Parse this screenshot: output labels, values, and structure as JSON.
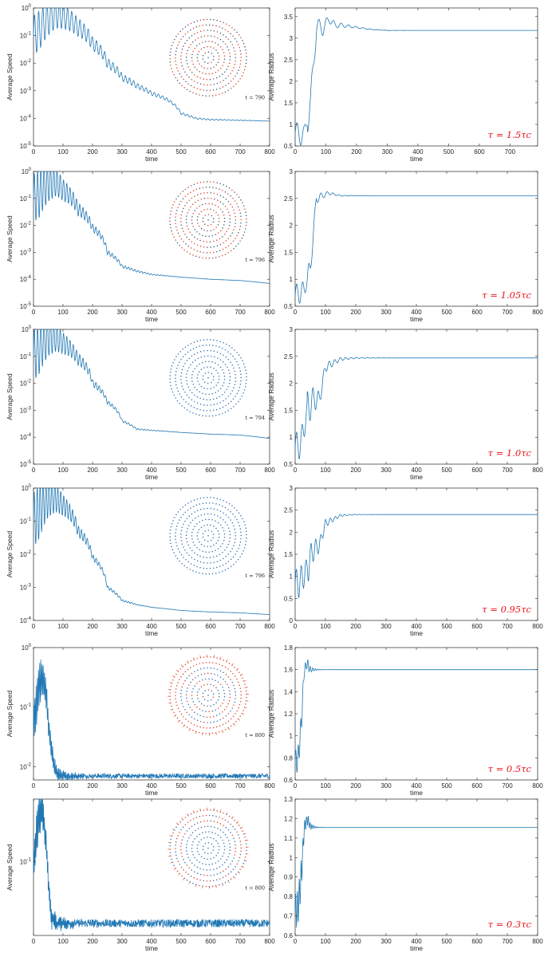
{
  "colors": {
    "line": "#1f77b4",
    "dot_blue": "#2e6fb5",
    "dot_red": "#e0442a",
    "tau_label": "#e8141b",
    "axis": "#262626"
  },
  "chart_data": [
    {
      "type": "line",
      "row": 1,
      "col": "speed",
      "xlabel": "time",
      "ylabel": "Average Speed",
      "yscale": "log",
      "xlim": [
        0,
        800
      ],
      "ylim": [
        1e-05,
        1
      ],
      "xticks": [
        "0",
        "100",
        "200",
        "300",
        "400",
        "500",
        "600",
        "700",
        "800"
      ],
      "yticks": [
        {
          "exp": "-5",
          "v": 1e-05
        },
        {
          "exp": "-4",
          "v": 0.0001
        },
        {
          "exp": "-3",
          "v": 0.001
        },
        {
          "exp": "-2",
          "v": 0.01
        },
        {
          "exp": "-1",
          "v": 0.1
        },
        {
          "exp": "0",
          "v": 1
        }
      ],
      "series": [
        {
          "x": [
            0,
            20,
            50,
            75,
            100,
            150,
            200,
            250,
            300,
            350,
            400,
            450,
            500,
            550,
            600,
            700,
            790
          ],
          "y": [
            0.1,
            0.15,
            0.4,
            0.6,
            0.5,
            0.2,
            0.05,
            0.01,
            0.003,
            0.0015,
            0.0008,
            0.0005,
            0.00015,
            0.0001,
            9e-05,
            8.5e-05,
            8e-05
          ],
          "osc_decay": 0.006,
          "osc_amp": 1.2,
          "osc_period": 14
        }
      ],
      "inset": {
        "label": "t = 790",
        "style": "sparse"
      }
    },
    {
      "type": "line",
      "row": 1,
      "col": "radius",
      "xlabel": "time",
      "ylabel": "Average Radius",
      "xlim": [
        0,
        790
      ],
      "ylim": [
        0.5,
        3.7
      ],
      "xticks": [
        "0",
        "100",
        "200",
        "300",
        "400",
        "500",
        "600",
        "700"
      ],
      "yticks": [
        {
          "label": "0.5",
          "v": 0.5
        },
        {
          "label": "1",
          "v": 1
        },
        {
          "label": "1.5",
          "v": 1.5
        },
        {
          "label": "2",
          "v": 2
        },
        {
          "label": "2.5",
          "v": 2.5
        },
        {
          "label": "3",
          "v": 3
        },
        {
          "label": "3.5",
          "v": 3.5
        }
      ],
      "series": [
        {
          "x": [
            0,
            30,
            50,
            70,
            90,
            110,
            130,
            150,
            200,
            250,
            300,
            400,
            500,
            600,
            700,
            790
          ],
          "y": [
            0.8,
            0.75,
            1.5,
            3.3,
            3.2,
            3.45,
            3.3,
            3.3,
            3.25,
            3.2,
            3.18,
            3.18,
            3.18,
            3.18,
            3.18,
            3.18
          ],
          "osc_decay": 0.018,
          "osc_amp": 1.3,
          "osc_period": 24
        }
      ],
      "annotation": "τ = 1.5τc"
    },
    {
      "type": "line",
      "row": 2,
      "col": "speed",
      "xlabel": "time",
      "ylabel": "Average Speed",
      "yscale": "log",
      "xlim": [
        0,
        800
      ],
      "ylim": [
        1e-05,
        1
      ],
      "xticks": [
        "0",
        "100",
        "200",
        "300",
        "400",
        "500",
        "600",
        "700",
        "800"
      ],
      "yticks": [
        {
          "exp": "-5",
          "v": 1e-05
        },
        {
          "exp": "-4",
          "v": 0.0001
        },
        {
          "exp": "-3",
          "v": 0.001
        },
        {
          "exp": "-2",
          "v": 0.01
        },
        {
          "exp": "-1",
          "v": 0.1
        },
        {
          "exp": "0",
          "v": 1
        }
      ],
      "series": [
        {
          "x": [
            0,
            20,
            50,
            75,
            100,
            150,
            200,
            250,
            300,
            350,
            400,
            500,
            600,
            700,
            800
          ],
          "y": [
            0.1,
            0.15,
            0.35,
            0.4,
            0.2,
            0.04,
            0.008,
            0.001,
            0.0003,
            0.0002,
            0.00015,
            0.00012,
            0.0001,
            9e-05,
            7e-05
          ],
          "osc_decay": 0.01,
          "osc_amp": 1.5,
          "osc_period": 11
        }
      ],
      "inset": {
        "label": "t = 796",
        "style": "sparse"
      }
    },
    {
      "type": "line",
      "row": 2,
      "col": "radius",
      "xlabel": "time",
      "ylabel": "Average Radius",
      "xlim": [
        0,
        800
      ],
      "ylim": [
        0.5,
        3
      ],
      "xticks": [
        "0",
        "100",
        "200",
        "300",
        "400",
        "500",
        "600",
        "700",
        "800"
      ],
      "yticks": [
        {
          "label": "0.5",
          "v": 0.5
        },
        {
          "label": "1",
          "v": 1
        },
        {
          "label": "1.5",
          "v": 1.5
        },
        {
          "label": "2",
          "v": 2
        },
        {
          "label": "2.5",
          "v": 2.5
        },
        {
          "label": "3",
          "v": 3
        }
      ],
      "series": [
        {
          "x": [
            0,
            30,
            50,
            70,
            90,
            110,
            150,
            200,
            250,
            300,
            400,
            500,
            600,
            700,
            800
          ],
          "y": [
            0.7,
            0.8,
            1.2,
            2.5,
            2.55,
            2.6,
            2.55,
            2.55,
            2.55,
            2.55,
            2.55,
            2.55,
            2.55,
            2.55,
            2.55
          ],
          "osc_decay": 0.028,
          "osc_amp": 1.3,
          "osc_period": 20
        }
      ],
      "annotation": "τ = 1.05τc"
    },
    {
      "type": "line",
      "row": 3,
      "col": "speed",
      "xlabel": "time",
      "ylabel": "Average Speed",
      "yscale": "log",
      "xlim": [
        0,
        800
      ],
      "ylim": [
        1e-05,
        1
      ],
      "xticks": [
        "0",
        "100",
        "200",
        "300",
        "400",
        "500",
        "600",
        "700",
        "800"
      ],
      "yticks": [
        {
          "exp": "-5",
          "v": 1e-05
        },
        {
          "exp": "-4",
          "v": 0.0001
        },
        {
          "exp": "-3",
          "v": 0.001
        },
        {
          "exp": "-2",
          "v": 0.01
        },
        {
          "exp": "-1",
          "v": 0.1
        },
        {
          "exp": "0",
          "v": 1
        }
      ],
      "series": [
        {
          "x": [
            0,
            20,
            50,
            75,
            100,
            150,
            200,
            250,
            300,
            350,
            400,
            500,
            600,
            700,
            800
          ],
          "y": [
            0.1,
            0.2,
            0.5,
            0.5,
            0.3,
            0.08,
            0.01,
            0.002,
            0.0004,
            0.0002,
            0.00018,
            0.00015,
            0.00013,
            0.00012,
            9e-05
          ],
          "osc_decay": 0.011,
          "osc_amp": 1.6,
          "osc_period": 11
        }
      ],
      "inset": {
        "label": "t = 794",
        "style": "blue"
      }
    },
    {
      "type": "line",
      "row": 3,
      "col": "radius",
      "xlabel": "time",
      "ylabel": "Average Radius",
      "xlim": [
        0,
        800
      ],
      "ylim": [
        0.5,
        3
      ],
      "xticks": [
        "0",
        "100",
        "200",
        "300",
        "400",
        "500",
        "600",
        "700",
        "800"
      ],
      "yticks": [
        {
          "label": "0.5",
          "v": 0.5
        },
        {
          "label": "1",
          "v": 1
        },
        {
          "label": "1.5",
          "v": 1.5
        },
        {
          "label": "2",
          "v": 2
        },
        {
          "label": "2.5",
          "v": 2.5
        },
        {
          "label": "3",
          "v": 3
        }
      ],
      "series": [
        {
          "x": [
            0,
            20,
            40,
            60,
            80,
            100,
            150,
            200,
            250,
            300,
            400,
            500,
            600,
            700,
            800
          ],
          "y": [
            0.8,
            0.9,
            1.5,
            1.7,
            1.7,
            2.3,
            2.45,
            2.47,
            2.47,
            2.47,
            2.47,
            2.47,
            2.47,
            2.47,
            2.47
          ],
          "osc_decay": 0.022,
          "osc_amp": 1.8,
          "osc_period": 18
        }
      ],
      "annotation": "τ = 1.0τc"
    },
    {
      "type": "line",
      "row": 4,
      "col": "speed",
      "xlabel": "time",
      "ylabel": "Average Speed",
      "yscale": "log",
      "xlim": [
        0,
        800
      ],
      "ylim": [
        0.0001,
        1
      ],
      "xticks": [
        "0",
        "100",
        "200",
        "300",
        "400",
        "500",
        "600",
        "700",
        "800"
      ],
      "yticks": [
        {
          "exp": "-4",
          "v": 0.0001
        },
        {
          "exp": "-3",
          "v": 0.001
        },
        {
          "exp": "-2",
          "v": 0.01
        },
        {
          "exp": "-1",
          "v": 0.1
        },
        {
          "exp": "0",
          "v": 1
        }
      ],
      "series": [
        {
          "x": [
            0,
            20,
            50,
            75,
            100,
            150,
            200,
            250,
            300,
            350,
            400,
            500,
            600,
            700,
            800
          ],
          "y": [
            0.1,
            0.2,
            0.5,
            0.5,
            0.3,
            0.05,
            0.008,
            0.001,
            0.0004,
            0.0003,
            0.00025,
            0.0002,
            0.00018,
            0.00017,
            0.00015
          ],
          "osc_decay": 0.012,
          "osc_amp": 1.4,
          "osc_period": 10
        }
      ],
      "inset": {
        "label": "t = 796",
        "style": "blue"
      }
    },
    {
      "type": "line",
      "row": 4,
      "col": "radius",
      "xlabel": "time",
      "ylabel": "Average Radius",
      "xlim": [
        0,
        800
      ],
      "ylim": [
        0,
        3
      ],
      "xticks": [
        "0",
        "100",
        "200",
        "300",
        "400",
        "500",
        "600",
        "700",
        "800"
      ],
      "yticks": [
        {
          "label": "0",
          "v": 0
        },
        {
          "label": "0.5",
          "v": 0.5
        },
        {
          "label": "1",
          "v": 1
        },
        {
          "label": "1.5",
          "v": 1.5
        },
        {
          "label": "2",
          "v": 2
        },
        {
          "label": "2.5",
          "v": 2.5
        },
        {
          "label": "3",
          "v": 3
        }
      ],
      "series": [
        {
          "x": [
            0,
            20,
            40,
            60,
            80,
            100,
            150,
            200,
            250,
            300,
            400,
            500,
            600,
            700,
            800
          ],
          "y": [
            0.8,
            0.9,
            1.2,
            1.6,
            1.7,
            2.2,
            2.38,
            2.4,
            2.4,
            2.4,
            2.4,
            2.4,
            2.4,
            2.4,
            2.4
          ],
          "osc_decay": 0.025,
          "osc_amp": 1.9,
          "osc_period": 16
        }
      ],
      "annotation": "τ = 0.95τc"
    },
    {
      "type": "line",
      "row": 5,
      "col": "speed",
      "xlabel": "time",
      "ylabel": "Average Speed",
      "yscale": "log",
      "xlim": [
        0,
        800
      ],
      "ylim": [
        0.006,
        1
      ],
      "xticks": [
        "0",
        "100",
        "200",
        "300",
        "400",
        "500",
        "600",
        "700",
        "800"
      ],
      "yticks": [
        {
          "exp": "-2",
          "v": 0.01
        },
        {
          "exp": "-1",
          "v": 0.1
        },
        {
          "exp": "0",
          "v": 1
        }
      ],
      "series": [
        {
          "x": [
            0,
            10,
            20,
            30,
            40,
            50,
            60,
            70,
            80,
            100,
            150,
            200,
            300,
            400,
            500,
            600,
            700,
            800
          ],
          "y": [
            0.05,
            0.1,
            0.25,
            0.3,
            0.2,
            0.05,
            0.02,
            0.01,
            0.0075,
            0.007,
            0.007,
            0.007,
            0.007,
            0.007,
            0.007,
            0.007,
            0.007,
            0.007
          ],
          "osc_decay": 0.02,
          "osc_amp": 0.6,
          "osc_period": 4,
          "noise": 0.08
        }
      ],
      "inset": {
        "label": "t = 800",
        "style": "redheavy"
      }
    },
    {
      "type": "line",
      "row": 5,
      "col": "radius",
      "xlabel": "time",
      "ylabel": "Average Radius",
      "xlim": [
        0,
        800
      ],
      "ylim": [
        0.6,
        1.8
      ],
      "xticks": [
        "0",
        "100",
        "200",
        "300",
        "400",
        "500",
        "600",
        "700",
        "800"
      ],
      "yticks": [
        {
          "label": "0.6",
          "v": 0.6
        },
        {
          "label": "0.8",
          "v": 0.8
        },
        {
          "label": "1",
          "v": 1
        },
        {
          "label": "1.2",
          "v": 1.2
        },
        {
          "label": "1.4",
          "v": 1.4
        },
        {
          "label": "1.6",
          "v": 1.6
        },
        {
          "label": "1.8",
          "v": 1.8
        }
      ],
      "series": [
        {
          "x": [
            0,
            10,
            20,
            30,
            40,
            50,
            70,
            100,
            200,
            300,
            400,
            500,
            600,
            700,
            800
          ],
          "y": [
            0.75,
            0.8,
            1.1,
            1.6,
            1.65,
            1.6,
            1.6,
            1.6,
            1.6,
            1.6,
            1.6,
            1.6,
            1.6,
            1.6,
            1.6
          ],
          "osc_decay": 0.07,
          "osc_amp": 1.6,
          "osc_period": 8
        }
      ],
      "annotation": "τ = 0.5τc"
    },
    {
      "type": "line",
      "row": 6,
      "col": "speed",
      "xlabel": "time",
      "ylabel": "Average Speed",
      "yscale": "log",
      "xlim": [
        0,
        800
      ],
      "ylim": [
        0.012,
        0.6
      ],
      "xticks": [
        "0",
        "100",
        "200",
        "300",
        "400",
        "500",
        "600",
        "700",
        "800"
      ],
      "yticks": [
        {
          "exp": "-1",
          "v": 0.1
        }
      ],
      "series": [
        {
          "x": [
            0,
            10,
            20,
            30,
            40,
            50,
            60,
            80,
            100,
            200,
            300,
            400,
            500,
            600,
            700,
            800
          ],
          "y": [
            0.08,
            0.2,
            0.4,
            0.45,
            0.2,
            0.05,
            0.02,
            0.017,
            0.017,
            0.017,
            0.017,
            0.017,
            0.017,
            0.017,
            0.017,
            0.017
          ],
          "osc_decay": 0.02,
          "osc_amp": 0.4,
          "osc_period": 3,
          "noise": 0.1
        }
      ],
      "inset": {
        "label": "t = 800",
        "style": "redmix"
      }
    },
    {
      "type": "line",
      "row": 6,
      "col": "radius",
      "xlabel": "time",
      "ylabel": "Average Radius",
      "xlim": [
        0,
        800
      ],
      "ylim": [
        0.6,
        1.3
      ],
      "xticks": [
        "0",
        "100",
        "200",
        "300",
        "400",
        "500",
        "600",
        "700",
        "800"
      ],
      "yticks": [
        {
          "label": "0.6",
          "v": 0.6
        },
        {
          "label": "0.7",
          "v": 0.7
        },
        {
          "label": "0.8",
          "v": 0.8
        },
        {
          "label": "0.9",
          "v": 0.9
        },
        {
          "label": "1",
          "v": 1
        },
        {
          "label": "1.1",
          "v": 1.1
        },
        {
          "label": "1.2",
          "v": 1.2
        },
        {
          "label": "1.3",
          "v": 1.3
        }
      ],
      "series": [
        {
          "x": [
            0,
            10,
            20,
            30,
            40,
            50,
            70,
            100,
            200,
            300,
            400,
            500,
            600,
            700,
            800
          ],
          "y": [
            0.72,
            0.75,
            0.9,
            1.15,
            1.2,
            1.16,
            1.155,
            1.155,
            1.155,
            1.155,
            1.155,
            1.155,
            1.155,
            1.155,
            1.155
          ],
          "osc_decay": 0.08,
          "osc_amp": 2.2,
          "osc_period": 6
        }
      ],
      "annotation": "τ = 0.3τc"
    }
  ]
}
